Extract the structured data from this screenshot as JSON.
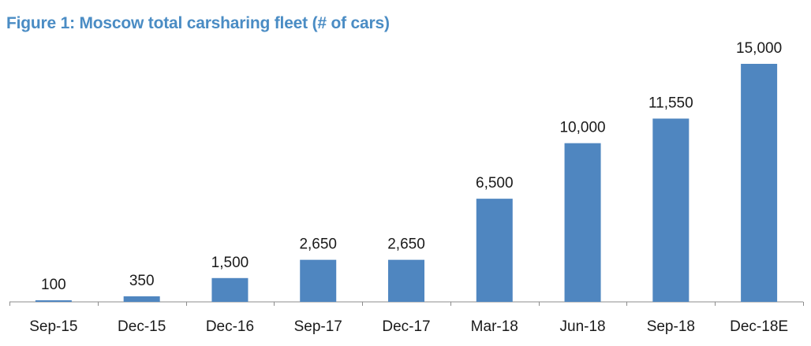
{
  "chart_data": {
    "type": "bar",
    "title": "Figure 1: Moscow total carsharing fleet (# of cars)",
    "categories": [
      "Sep-15",
      "Dec-15",
      "Dec-16",
      "Sep-17",
      "Dec-17",
      "Mar-18",
      "Jun-18",
      "Sep-18",
      "Dec-18E"
    ],
    "values": [
      100,
      350,
      1500,
      2650,
      2650,
      6500,
      10000,
      11550,
      15000
    ],
    "data_labels": [
      "100",
      "350",
      "1,500",
      "2,650",
      "2,650",
      "6,500",
      "10,000",
      "11,550",
      "15,000"
    ],
    "xlabel": "",
    "ylabel": "",
    "ylim": [
      0,
      15000
    ],
    "grid": false,
    "legend": "none",
    "colors": {
      "bar": "#4f86c0",
      "title": "#4a8cc4"
    }
  }
}
